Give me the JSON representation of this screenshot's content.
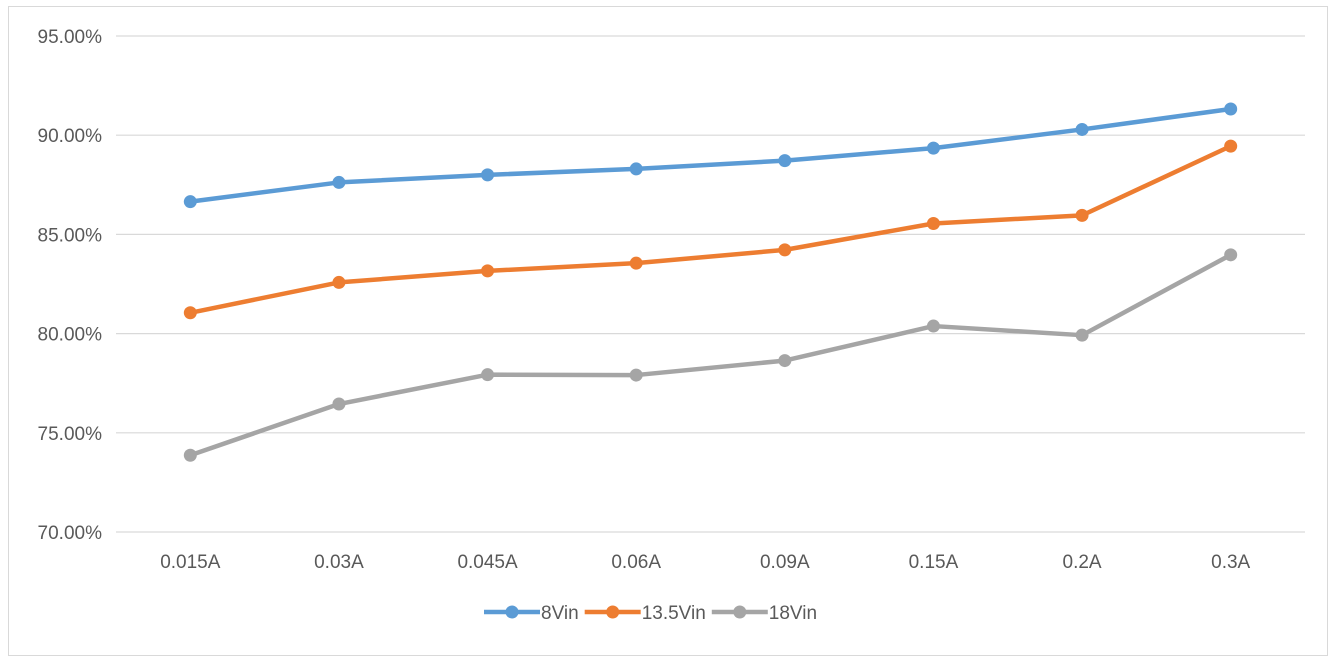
{
  "chart_data": {
    "type": "line",
    "title": "",
    "xlabel": "",
    "ylabel": "",
    "categories": [
      "0.015A",
      "0.03A",
      "0.045A",
      "0.06A",
      "0.09A",
      "0.15A",
      "0.2A",
      "0.3A"
    ],
    "ylim": [
      0.7,
      0.95
    ],
    "y_ticks": [
      0.7,
      0.75,
      0.8,
      0.85,
      0.9,
      0.95
    ],
    "y_tick_labels": [
      "70.00%",
      "75.00%",
      "80.00%",
      "85.00%",
      "90.00%",
      "95.00%"
    ],
    "grid": "horizontal",
    "legend_position": "bottom",
    "series": [
      {
        "name": "8Vin",
        "color": "#5B9BD5",
        "values": [
          0.8665,
          0.8762,
          0.88,
          0.883,
          0.8872,
          0.8935,
          0.9029,
          0.9132
        ]
      },
      {
        "name": "13.5Vin",
        "color": "#ED7D31",
        "values": [
          0.8105,
          0.8258,
          0.8316,
          0.8355,
          0.8422,
          0.8555,
          0.8596,
          0.8945
        ]
      },
      {
        "name": "18Vin",
        "color": "#A5A5A5",
        "values": [
          0.7387,
          0.7645,
          0.7793,
          0.7791,
          0.7864,
          0.8038,
          0.7992,
          0.8397
        ]
      }
    ]
  }
}
